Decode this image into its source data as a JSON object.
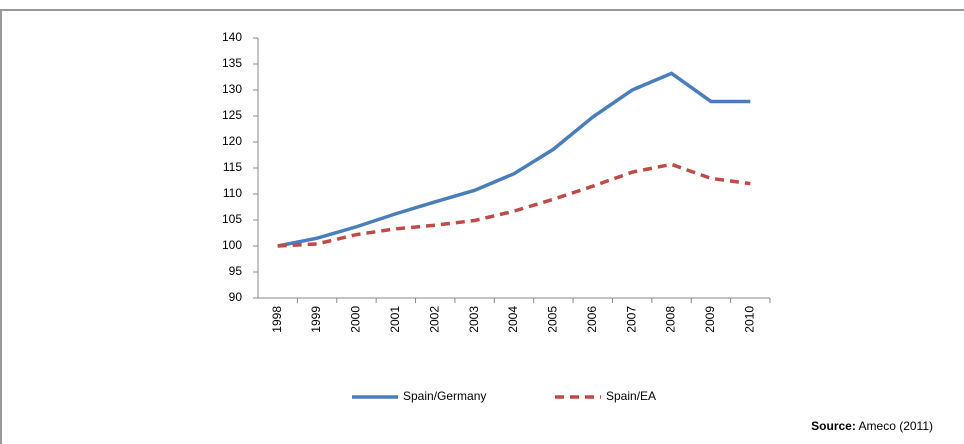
{
  "chart_data": {
    "type": "line",
    "categories": [
      "1998",
      "1999",
      "2000",
      "2001",
      "2002",
      "2003",
      "2004",
      "2005",
      "2006",
      "2007",
      "2008",
      "2009",
      "2010"
    ],
    "series": [
      {
        "name": "Spain/Germany",
        "color": "#4a7ebb",
        "dash": false,
        "values": [
          100,
          101.5,
          103.7,
          106.2,
          108.5,
          110.7,
          113.9,
          118.6,
          124.8,
          130,
          133.2,
          127.8,
          127.8
        ]
      },
      {
        "name": "Spain/EA",
        "color": "#be4b48",
        "dash": true,
        "values": [
          100,
          100.4,
          102.2,
          103.3,
          104,
          104.9,
          106.7,
          109,
          111.5,
          114.2,
          115.7,
          113,
          112
        ]
      }
    ],
    "ylim": [
      90,
      140
    ],
    "yticks": [
      90,
      95,
      100,
      105,
      110,
      115,
      120,
      125,
      130,
      135,
      140
    ],
    "grid": false,
    "legend": "bottom",
    "source_label": "Source:",
    "source": "Ameco (2011)"
  }
}
